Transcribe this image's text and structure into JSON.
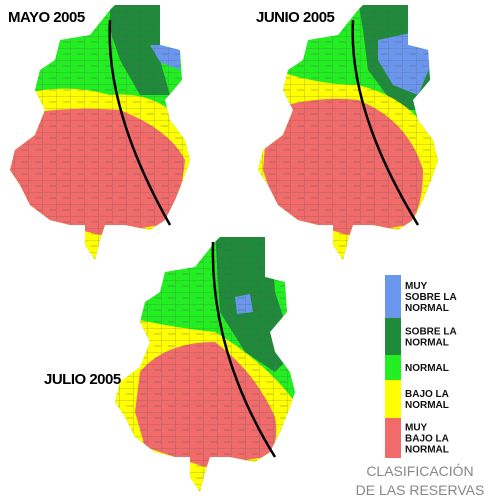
{
  "maps": [
    {
      "title": "MAYO 2005"
    },
    {
      "title": "JUNIO 2005"
    },
    {
      "title": "JULIO 2005"
    }
  ],
  "legend": {
    "items": [
      {
        "lines": [
          "MUY",
          "SOBRE LA",
          "NORMAL"
        ],
        "color": "#6b96ee"
      },
      {
        "lines": [
          "SOBRE LA",
          "NORMAL"
        ],
        "color": "#1f8a3a"
      },
      {
        "lines": [
          "NORMAL"
        ],
        "color": "#22ee22"
      },
      {
        "lines": [
          "BAJO LA",
          "NORMAL"
        ],
        "color": "#ffff00"
      },
      {
        "lines": [
          "MUY",
          "BAJO LA",
          "NORMAL"
        ],
        "color": "#f26b6b"
      }
    ]
  },
  "footer": {
    "lines": [
      "CLASIFICACIÓN",
      "DE LAS RESERVAS"
    ]
  }
}
